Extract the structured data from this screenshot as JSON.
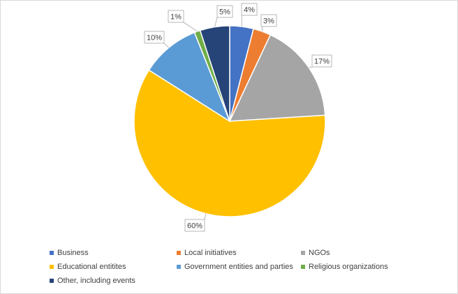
{
  "chart_data": {
    "type": "pie",
    "title": "",
    "start_angle_deg": 0,
    "direction": "clockwise",
    "slices": [
      {
        "name": "Business",
        "value": 4,
        "label": "4%",
        "color": "#4472c4"
      },
      {
        "name": "Local initiatives",
        "value": 3,
        "label": "3%",
        "color": "#ed7d31"
      },
      {
        "name": "NGOs",
        "value": 17,
        "label": "17%",
        "color": "#a5a5a5"
      },
      {
        "name": "Educational entitites",
        "value": 60,
        "label": "60%",
        "color": "#ffc000"
      },
      {
        "name": "Government entities and parties",
        "value": 10,
        "label": "10%",
        "color": "#5b9bd5"
      },
      {
        "name": "Religious organizations",
        "value": 1,
        "label": "1%",
        "color": "#70ad47"
      },
      {
        "name": "Other, including events",
        "value": 5,
        "label": "5%",
        "color": "#264478"
      }
    ],
    "legend_position": "bottom"
  }
}
